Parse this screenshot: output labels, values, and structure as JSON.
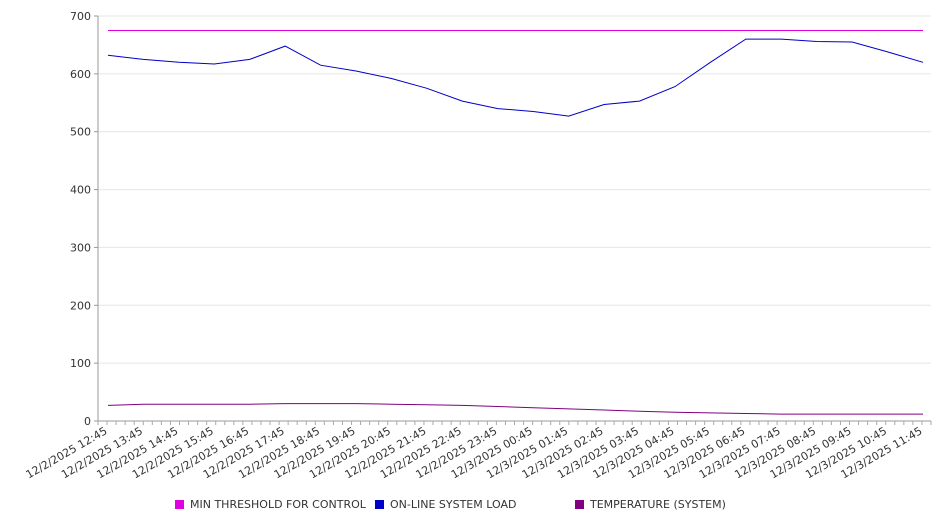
{
  "chart_data": {
    "type": "line",
    "title": "",
    "xlabel": "",
    "ylabel": "",
    "ylim": [
      0,
      700
    ],
    "yticks": [
      0,
      100,
      200,
      300,
      400,
      500,
      600,
      700
    ],
    "grid": true,
    "legend_position": "bottom",
    "x_labels": [
      "12/2/2025 12:45",
      "12/2/2025 13:45",
      "12/2/2025 14:45",
      "12/2/2025 15:45",
      "12/2/2025 16:45",
      "12/2/2025 17:45",
      "12/2/2025 18:45",
      "12/2/2025 19:45",
      "12/2/2025 20:45",
      "12/2/2025 21:45",
      "12/2/2025 22:45",
      "12/2/2025 23:45",
      "12/3/2025 00:45",
      "12/3/2025 01:45",
      "12/3/2025 02:45",
      "12/3/2025 03:45",
      "12/3/2025 04:45",
      "12/3/2025 05:45",
      "12/3/2025 06:45",
      "12/3/2025 07:45",
      "12/3/2025 08:45",
      "12/3/2025 09:45",
      "12/3/2025 10:45",
      "12/3/2025 11:45"
    ],
    "series": [
      {
        "name": "MIN THRESHOLD FOR CONTROL",
        "color": "#e000e0",
        "values": [
          675,
          675,
          675,
          675,
          675,
          675,
          675,
          675,
          675,
          675,
          675,
          675,
          675,
          675,
          675,
          675,
          675,
          675,
          675,
          675,
          675,
          675,
          675,
          675
        ]
      },
      {
        "name": "ON-LINE SYSTEM LOAD",
        "color": "#0000c8",
        "values": [
          632,
          625,
          620,
          617,
          625,
          648,
          615,
          605,
          592,
          575,
          553,
          540,
          535,
          527,
          547,
          553,
          578,
          620,
          660,
          660,
          656,
          655,
          638,
          620
        ]
      },
      {
        "name": "TEMPERATURE (SYSTEM)",
        "color": "#800080",
        "values": [
          27,
          29,
          29,
          29,
          29,
          30,
          30,
          30,
          29,
          28,
          27,
          25,
          23,
          21,
          19,
          17,
          15,
          14,
          13,
          12,
          12,
          12,
          12,
          12
        ]
      }
    ]
  }
}
